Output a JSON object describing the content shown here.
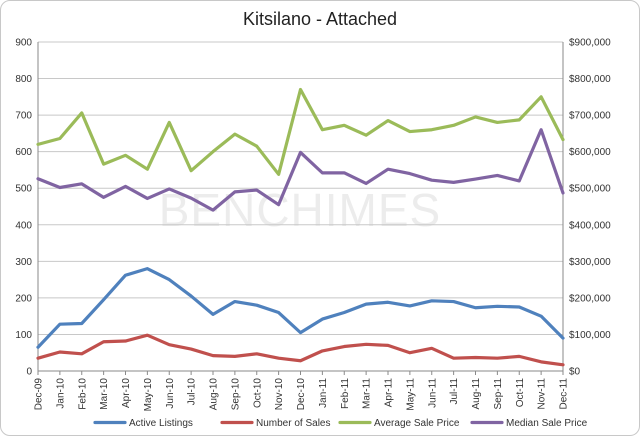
{
  "chart_data": {
    "type": "line",
    "title": "Kitsilano - Attached",
    "watermark": "BENCHIMES",
    "categories": [
      "Dec-09",
      "Jan-10",
      "Feb-10",
      "Mar-10",
      "Apr-10",
      "May-10",
      "Jun-10",
      "Jul-10",
      "Aug-10",
      "Sep-10",
      "Oct-10",
      "Nov-10",
      "Dec-10",
      "Jan-11",
      "Feb-11",
      "Mar-11",
      "Apr-11",
      "May-11",
      "Jun-11",
      "Jul-11",
      "Aug-11",
      "Sep-11",
      "Oct-11",
      "Nov-11",
      "Dec-11"
    ],
    "y_left": {
      "min": 0,
      "max": 900,
      "step": 100,
      "tick_labels": [
        "0",
        "100",
        "200",
        "300",
        "400",
        "500",
        "600",
        "700",
        "800",
        "900"
      ]
    },
    "y_right": {
      "min": 0,
      "max": 900000,
      "step": 100000,
      "tick_labels": [
        "$0",
        "$100,000",
        "$200,000",
        "$300,000",
        "$400,000",
        "$500,000",
        "$600,000",
        "$700,000",
        "$800,000",
        "$900,000"
      ]
    },
    "grid": true,
    "legend_position": "bottom",
    "series": [
      {
        "name": "Active Listings",
        "axis": "left",
        "color": "#4f81bd",
        "values": [
          65,
          128,
          130,
          195,
          262,
          280,
          250,
          205,
          155,
          190,
          180,
          160,
          105,
          142,
          160,
          183,
          188,
          178,
          192,
          190,
          173,
          177,
          175,
          150,
          90
        ]
      },
      {
        "name": "Number of Sales",
        "axis": "left",
        "color": "#c0504d",
        "values": [
          35,
          52,
          47,
          80,
          82,
          98,
          72,
          60,
          42,
          40,
          47,
          35,
          28,
          55,
          67,
          73,
          70,
          50,
          62,
          35,
          37,
          35,
          40,
          25,
          17
        ]
      },
      {
        "name": "Average Sale Price",
        "axis": "right",
        "color": "#9bbb59",
        "values": [
          620000,
          636000,
          706000,
          566000,
          590000,
          552000,
          680000,
          548000,
          600000,
          648000,
          615000,
          538000,
          770000,
          660000,
          672000,
          645000,
          685000,
          655000,
          660000,
          672000,
          695000,
          680000,
          687000,
          750000,
          633000
        ]
      },
      {
        "name": "Median Sale Price",
        "axis": "right",
        "color": "#8064a2",
        "values": [
          526000,
          502000,
          512000,
          475000,
          505000,
          472000,
          498000,
          473000,
          440000,
          490000,
          495000,
          455000,
          598000,
          542000,
          542000,
          513000,
          552000,
          540000,
          522000,
          516000,
          525000,
          535000,
          520000,
          660000,
          487000
        ]
      }
    ]
  }
}
